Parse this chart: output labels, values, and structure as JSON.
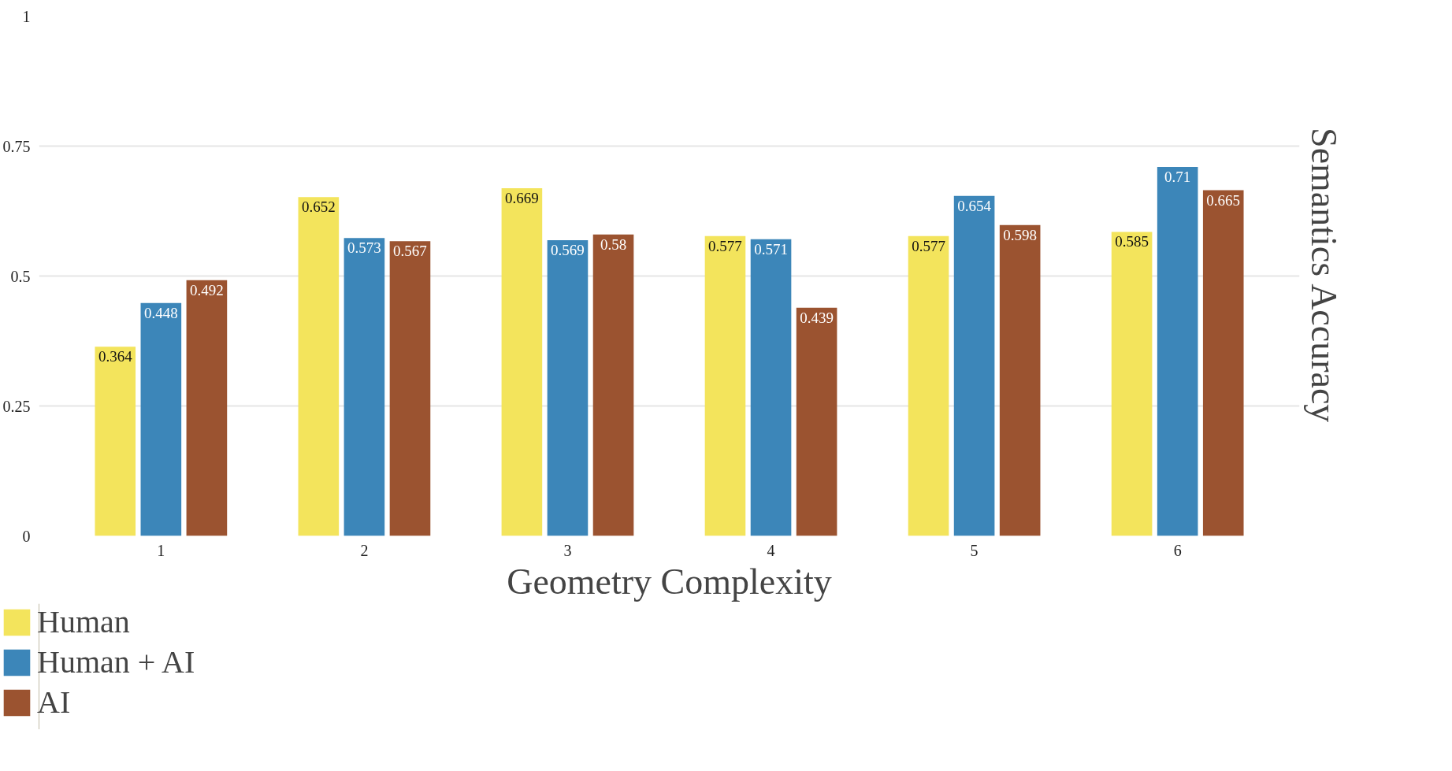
{
  "chart_data": {
    "type": "bar",
    "xlabel": "Geometry Complexity",
    "ylabel": "Semantics Accuracy",
    "categories": [
      "1",
      "2",
      "3",
      "4",
      "5",
      "6"
    ],
    "series": [
      {
        "name": "Human",
        "color": "#f3e45c",
        "values": [
          0.364,
          0.652,
          0.669,
          0.577,
          0.577,
          0.585
        ]
      },
      {
        "name": "Human + AI",
        "color": "#3c86b9",
        "values": [
          0.448,
          0.573,
          0.569,
          0.571,
          0.654,
          0.71
        ]
      },
      {
        "name": "AI",
        "color": "#9b5330",
        "values": [
          0.492,
          0.567,
          0.58,
          0.439,
          0.598,
          0.665
        ]
      }
    ],
    "ylim": [
      0,
      1
    ],
    "yticks": [
      0,
      0.25,
      0.5,
      0.75,
      1
    ],
    "grid": "y",
    "legend": "bottom left",
    "data_labels": true
  }
}
